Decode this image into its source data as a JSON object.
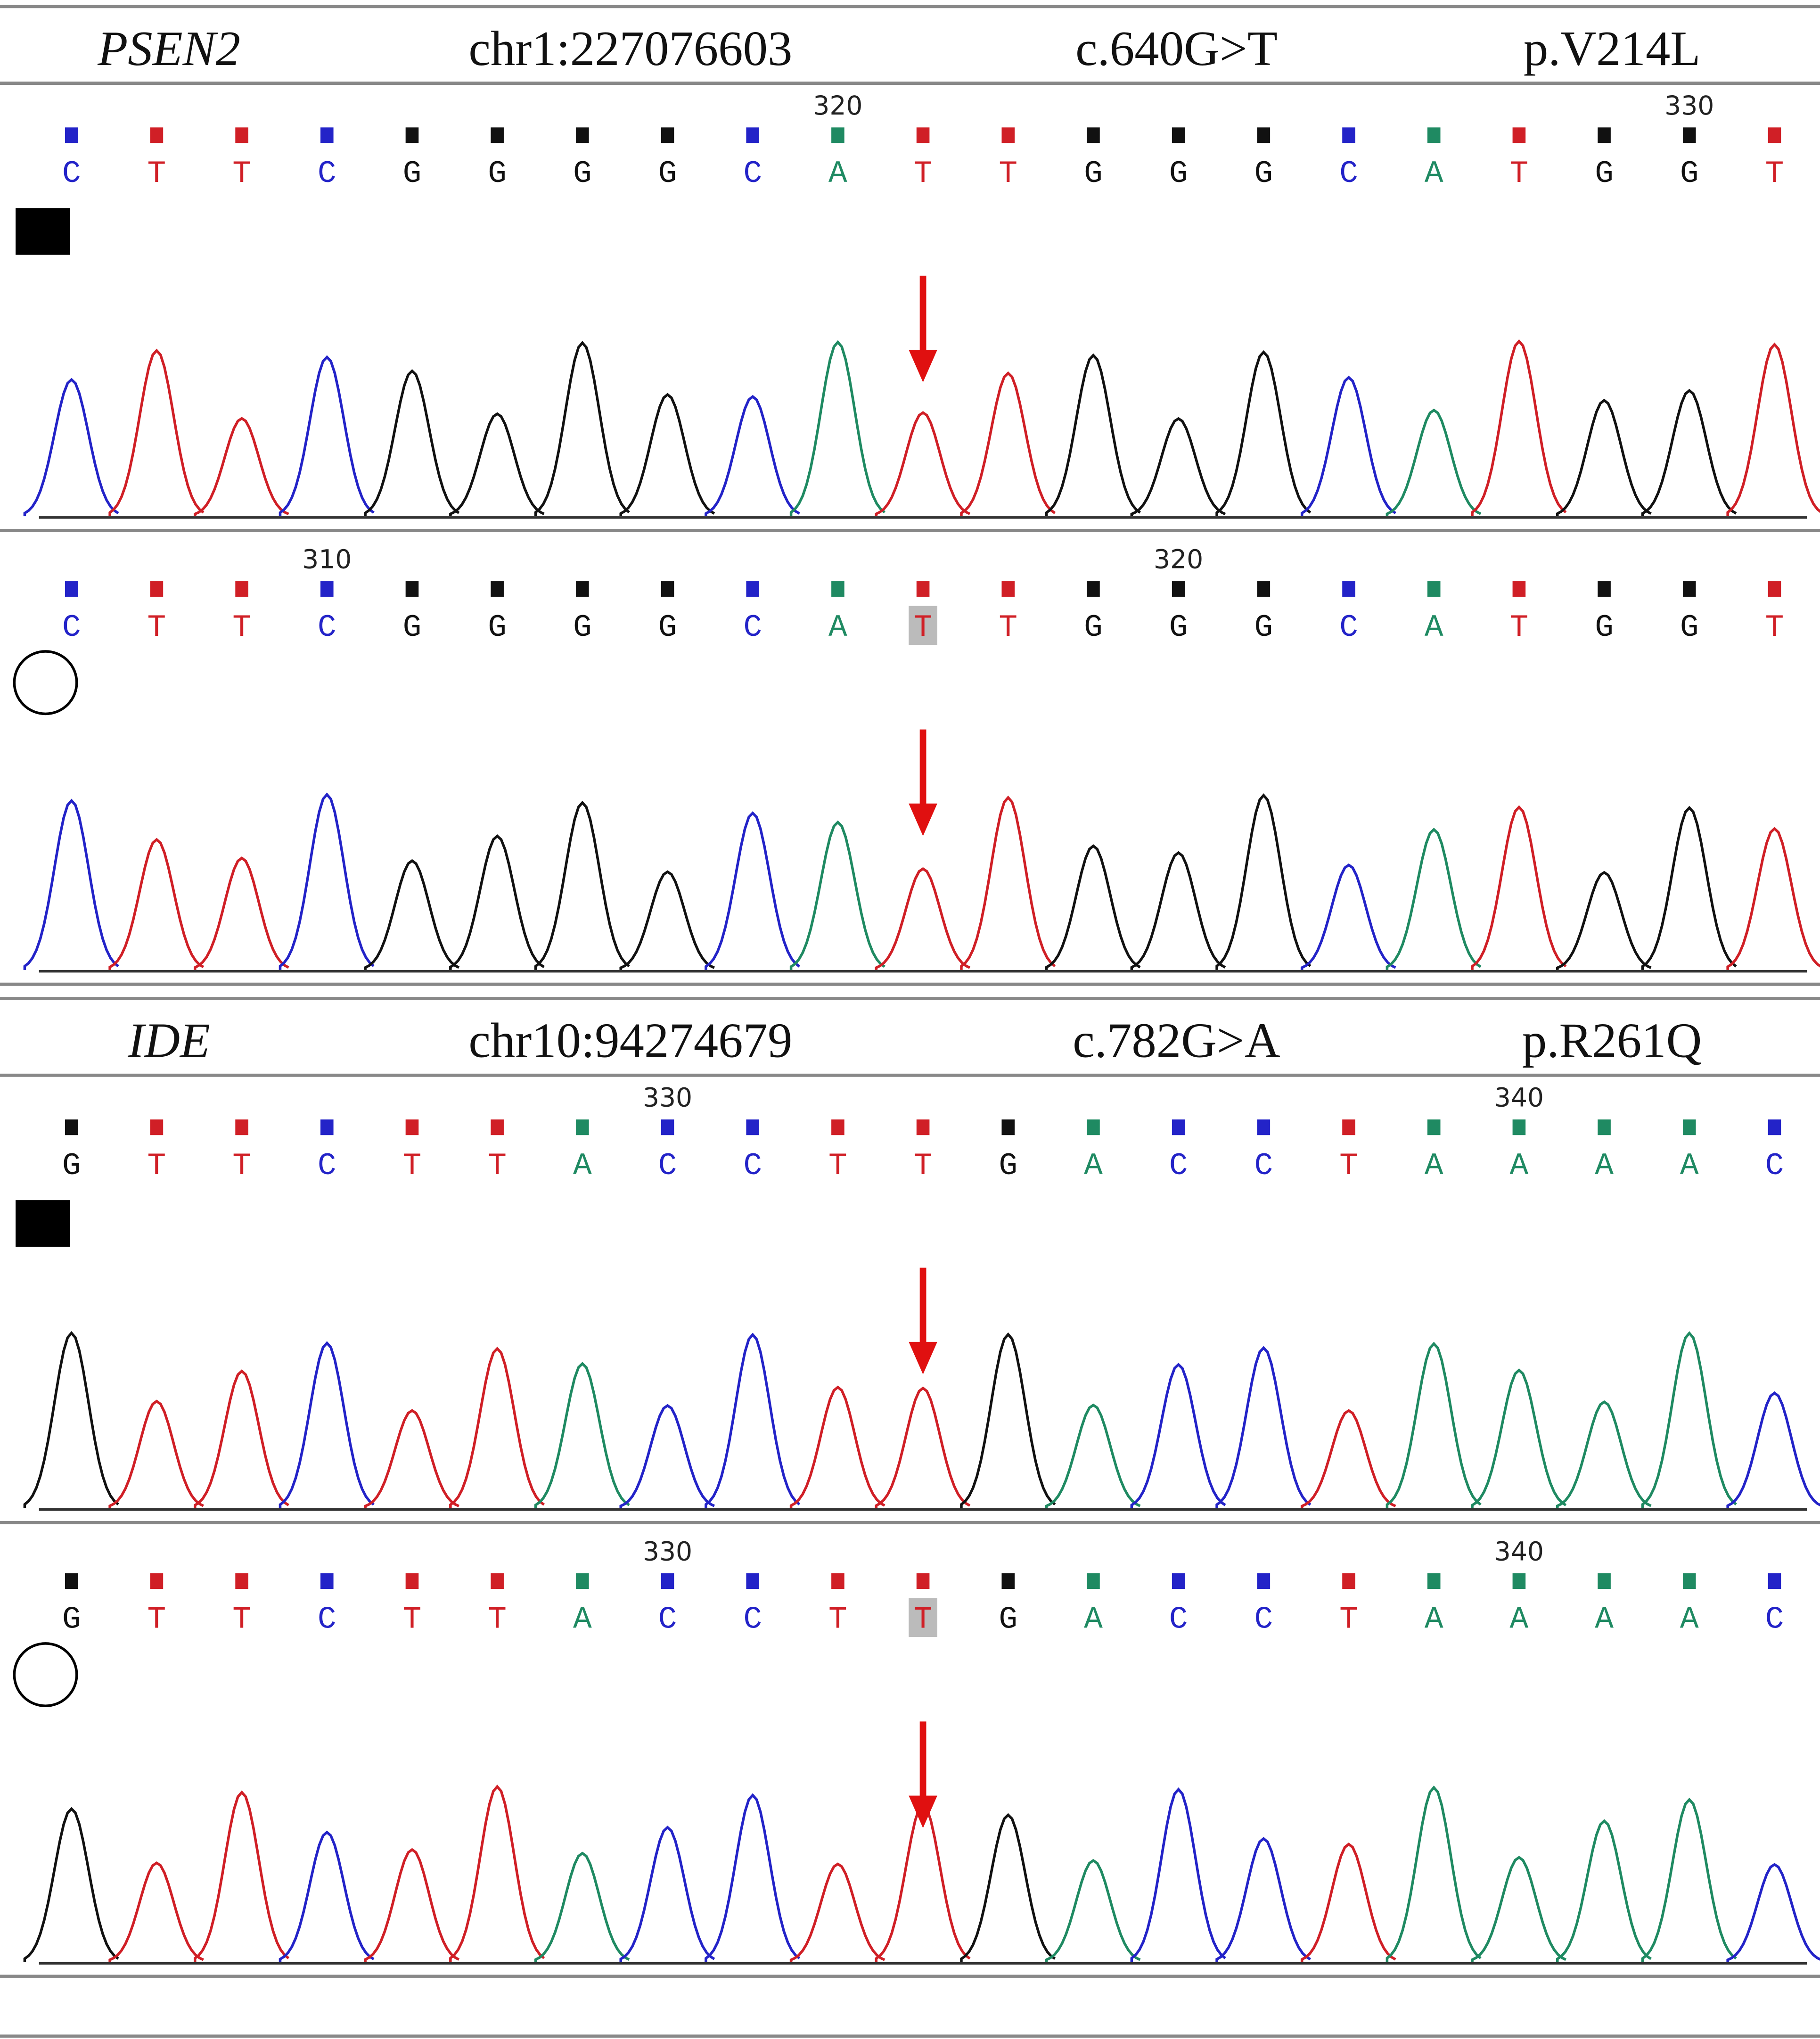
{
  "base_colors": {
    "A": "#1f8a62",
    "C": "#2323c8",
    "G": "#111111",
    "T": "#d01f26"
  },
  "panels": [
    {
      "gene": "PSEN2",
      "position": "chr1:227076603",
      "cdna": "c.640G>T",
      "protein": "p.V214L",
      "traces": [
        {
          "symbol": "filled-square",
          "bases": [
            "C",
            "T",
            "T",
            "C",
            "G",
            "G",
            "G",
            "G",
            "C",
            "A",
            "T",
            "T",
            "G",
            "G",
            "G",
            "C",
            "A",
            "T",
            "G",
            "G",
            "T"
          ],
          "position_labels": [
            {
              "index": 9,
              "text": "320"
            },
            {
              "index": 19,
              "text": "330"
            }
          ],
          "arrow": 10
        },
        {
          "symbol": "open-circle",
          "bases": [
            "C",
            "T",
            "T",
            "C",
            "G",
            "G",
            "G",
            "G",
            "C",
            "A",
            "T",
            "T",
            "G",
            "G",
            "G",
            "C",
            "A",
            "T",
            "G",
            "G",
            "T"
          ],
          "position_labels": [
            {
              "index": 3,
              "text": "310"
            },
            {
              "index": 13,
              "text": "320"
            }
          ],
          "arrow": 10,
          "highlight": 10
        }
      ]
    },
    {
      "gene": "IDE",
      "position": "chr10:94274679",
      "cdna": "c.782G>A",
      "protein": "p.R261Q",
      "traces": [
        {
          "symbol": "filled-square",
          "bases": [
            "G",
            "T",
            "T",
            "C",
            "T",
            "T",
            "A",
            "C",
            "C",
            "T",
            "T",
            "G",
            "A",
            "C",
            "C",
            "T",
            "A",
            "A",
            "A",
            "A",
            "C"
          ],
          "position_labels": [
            {
              "index": 7,
              "text": "330"
            },
            {
              "index": 17,
              "text": "340"
            }
          ],
          "arrow": 10
        },
        {
          "symbol": "open-circle",
          "bases": [
            "G",
            "T",
            "T",
            "C",
            "T",
            "T",
            "A",
            "C",
            "C",
            "T",
            "T",
            "G",
            "A",
            "C",
            "C",
            "T",
            "A",
            "A",
            "A",
            "A",
            "C"
          ],
          "position_labels": [
            {
              "index": 7,
              "text": "330"
            },
            {
              "index": 17,
              "text": "340"
            }
          ],
          "arrow": 10,
          "highlight": 10
        }
      ]
    }
  ]
}
